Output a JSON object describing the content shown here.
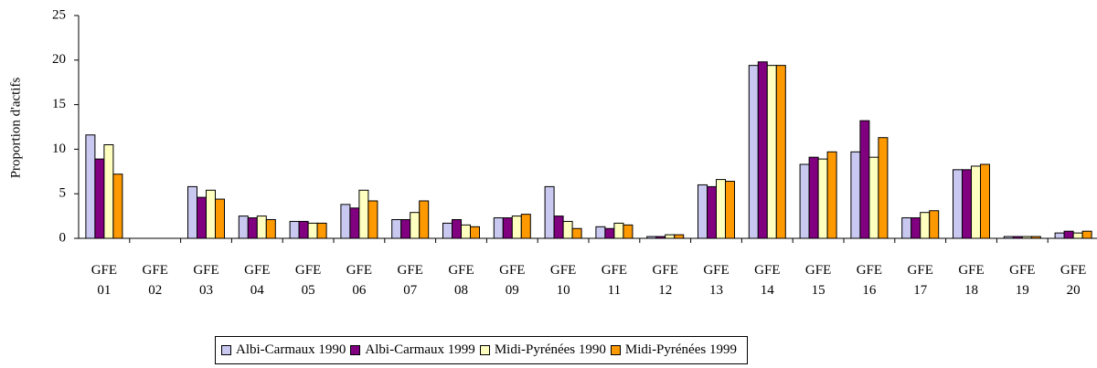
{
  "chart_data": {
    "type": "bar",
    "y_label": "Proportion d'actifs",
    "categories": [
      "GFE 01",
      "GFE 02",
      "GFE 03",
      "GFE 04",
      "GFE 05",
      "GFE 06",
      "GFE 07",
      "GFE 08",
      "GFE 09",
      "GFE 10",
      "GFE 11",
      "GFE 12",
      "GFE 13",
      "GFE 14",
      "GFE 15",
      "GFE 16",
      "GFE 17",
      "GFE 18",
      "GFE 19",
      "GFE 20"
    ],
    "series": [
      {
        "name": "Albi-Carmaux 1990",
        "color": "#c8c8f0",
        "values": [
          11.6,
          0,
          5.8,
          2.5,
          1.9,
          3.8,
          2.1,
          1.7,
          2.3,
          5.8,
          1.3,
          0.2,
          6.0,
          19.4,
          8.3,
          9.7,
          2.3,
          7.7,
          0.2,
          0.6
        ]
      },
      {
        "name": "Albi-Carmaux 1999",
        "color": "#800080",
        "values": [
          8.9,
          0,
          4.6,
          2.3,
          1.9,
          3.4,
          2.1,
          2.1,
          2.3,
          2.5,
          1.1,
          0.2,
          5.8,
          19.8,
          9.1,
          13.2,
          2.3,
          7.7,
          0.2,
          0.8
        ]
      },
      {
        "name": "Midi-Pyrénées 1990",
        "color": "#ffffc0",
        "values": [
          10.5,
          0,
          5.4,
          2.5,
          1.7,
          5.4,
          2.9,
          1.5,
          2.5,
          1.9,
          1.7,
          0.4,
          6.6,
          19.4,
          8.9,
          9.1,
          2.9,
          8.1,
          0.2,
          0.6
        ]
      },
      {
        "name": "Midi-Pyrénées 1999",
        "color": "#ff9900",
        "values": [
          7.2,
          0,
          4.4,
          2.1,
          1.7,
          4.2,
          4.2,
          1.3,
          2.7,
          1.1,
          1.5,
          0.4,
          6.4,
          19.4,
          9.7,
          11.3,
          3.1,
          8.3,
          0.2,
          0.8
        ]
      }
    ],
    "ylim": [
      0,
      25
    ],
    "yticks": [
      0,
      5,
      10,
      15,
      20,
      25
    ]
  }
}
